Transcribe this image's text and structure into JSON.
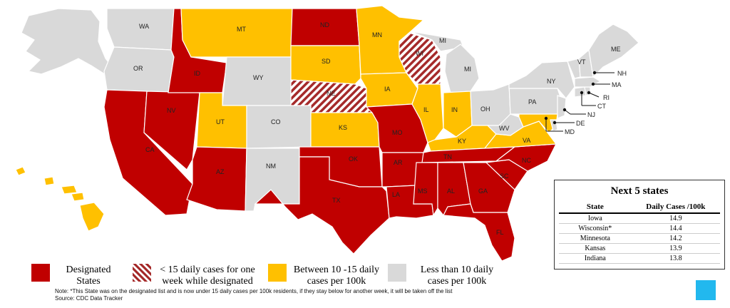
{
  "colors": {
    "designated": "#c00000",
    "range_10_15": "#ffc000",
    "under_10": "#d9d9d9",
    "hatch": "#a52a2a"
  },
  "states": {
    "WA": {
      "label": "WA",
      "category": "under_10"
    },
    "OR": {
      "label": "OR",
      "category": "under_10"
    },
    "CA": {
      "label": "CA",
      "category": "designated"
    },
    "NV": {
      "label": "NV",
      "category": "designated"
    },
    "ID": {
      "label": "ID",
      "category": "designated"
    },
    "MT": {
      "label": "MT",
      "category": "range_10_15"
    },
    "WY": {
      "label": "WY",
      "category": "under_10"
    },
    "UT": {
      "label": "UT",
      "category": "range_10_15"
    },
    "AZ": {
      "label": "AZ",
      "category": "designated"
    },
    "CO": {
      "label": "CO",
      "category": "under_10"
    },
    "NM": {
      "label": "NM",
      "category": "under_10"
    },
    "ND": {
      "label": "ND",
      "category": "designated"
    },
    "SD": {
      "label": "SD",
      "category": "range_10_15"
    },
    "NE": {
      "label": "NE",
      "category": "hatched"
    },
    "KS": {
      "label": "KS",
      "category": "range_10_15"
    },
    "OK": {
      "label": "OK",
      "category": "designated"
    },
    "TX": {
      "label": "TX",
      "category": "designated"
    },
    "MN": {
      "label": "MN",
      "category": "range_10_15"
    },
    "IA": {
      "label": "IA",
      "category": "range_10_15"
    },
    "MO": {
      "label": "MO",
      "category": "designated"
    },
    "AR": {
      "label": "AR",
      "category": "designated"
    },
    "LA": {
      "label": "LA",
      "category": "designated"
    },
    "WI": {
      "label": "WI",
      "category": "hatched"
    },
    "MI": {
      "label": "MI",
      "category": "under_10"
    },
    "MI_UP": {
      "label": "MI",
      "category": "under_10"
    },
    "IL": {
      "label": "IL",
      "category": "range_10_15"
    },
    "IN": {
      "label": "IN",
      "category": "range_10_15"
    },
    "OH": {
      "label": "OH",
      "category": "under_10"
    },
    "KY": {
      "label": "KY",
      "category": "range_10_15"
    },
    "TN": {
      "label": "TN",
      "category": "designated"
    },
    "MS": {
      "label": "MS",
      "category": "designated"
    },
    "AL": {
      "label": "AL",
      "category": "designated"
    },
    "GA": {
      "label": "GA",
      "category": "designated"
    },
    "FL": {
      "label": "FL",
      "category": "designated"
    },
    "SC": {
      "label": "SC",
      "category": "designated"
    },
    "NC": {
      "label": "NC",
      "category": "designated"
    },
    "VA": {
      "label": "VA",
      "category": "range_10_15"
    },
    "WV": {
      "label": "WV",
      "category": "under_10"
    },
    "PA": {
      "label": "PA",
      "category": "under_10"
    },
    "NY": {
      "label": "NY",
      "category": "under_10"
    },
    "VT": {
      "label": "VT",
      "category": "under_10"
    },
    "NH": {
      "label": "NH",
      "category": "under_10"
    },
    "ME": {
      "label": "ME",
      "category": "under_10"
    },
    "MA": {
      "label": "MA",
      "category": "under_10"
    },
    "RI": {
      "label": "RI",
      "category": "under_10"
    },
    "CT": {
      "label": "CT",
      "category": "under_10"
    },
    "NJ": {
      "label": "NJ",
      "category": "under_10"
    },
    "DE": {
      "label": "DE",
      "category": "under_10"
    },
    "MD": {
      "label": "MD",
      "category": "range_10_15"
    },
    "AK": {
      "label": "",
      "category": "under_10"
    },
    "HI": {
      "label": "",
      "category": "range_10_15"
    }
  },
  "table": {
    "title": "Next 5 states",
    "col_state": "State",
    "col_cases": "Daily Cases /100k",
    "rows": [
      {
        "state": "Iowa",
        "cases": "14.9"
      },
      {
        "state": "Wisconsin*",
        "cases": "14.4"
      },
      {
        "state": "Minnesota",
        "cases": "14.2"
      },
      {
        "state": "Kansas",
        "cases": "13.9"
      },
      {
        "state": "Indiana",
        "cases": "13.8"
      }
    ]
  },
  "legend": {
    "designated": "Designated States",
    "hatched": "< 15 daily cases for one week while designated",
    "range_10_15": "Between 10 -15 daily cases per 100k",
    "under_10": "Less than 10 daily cases per 100k"
  },
  "note": "Note: *This State was on the designated list and is now under 15 daily cases per 100k residents, if they stay below for another week, it will be taken off the list",
  "source": "Source: CDC Data Tracker"
}
